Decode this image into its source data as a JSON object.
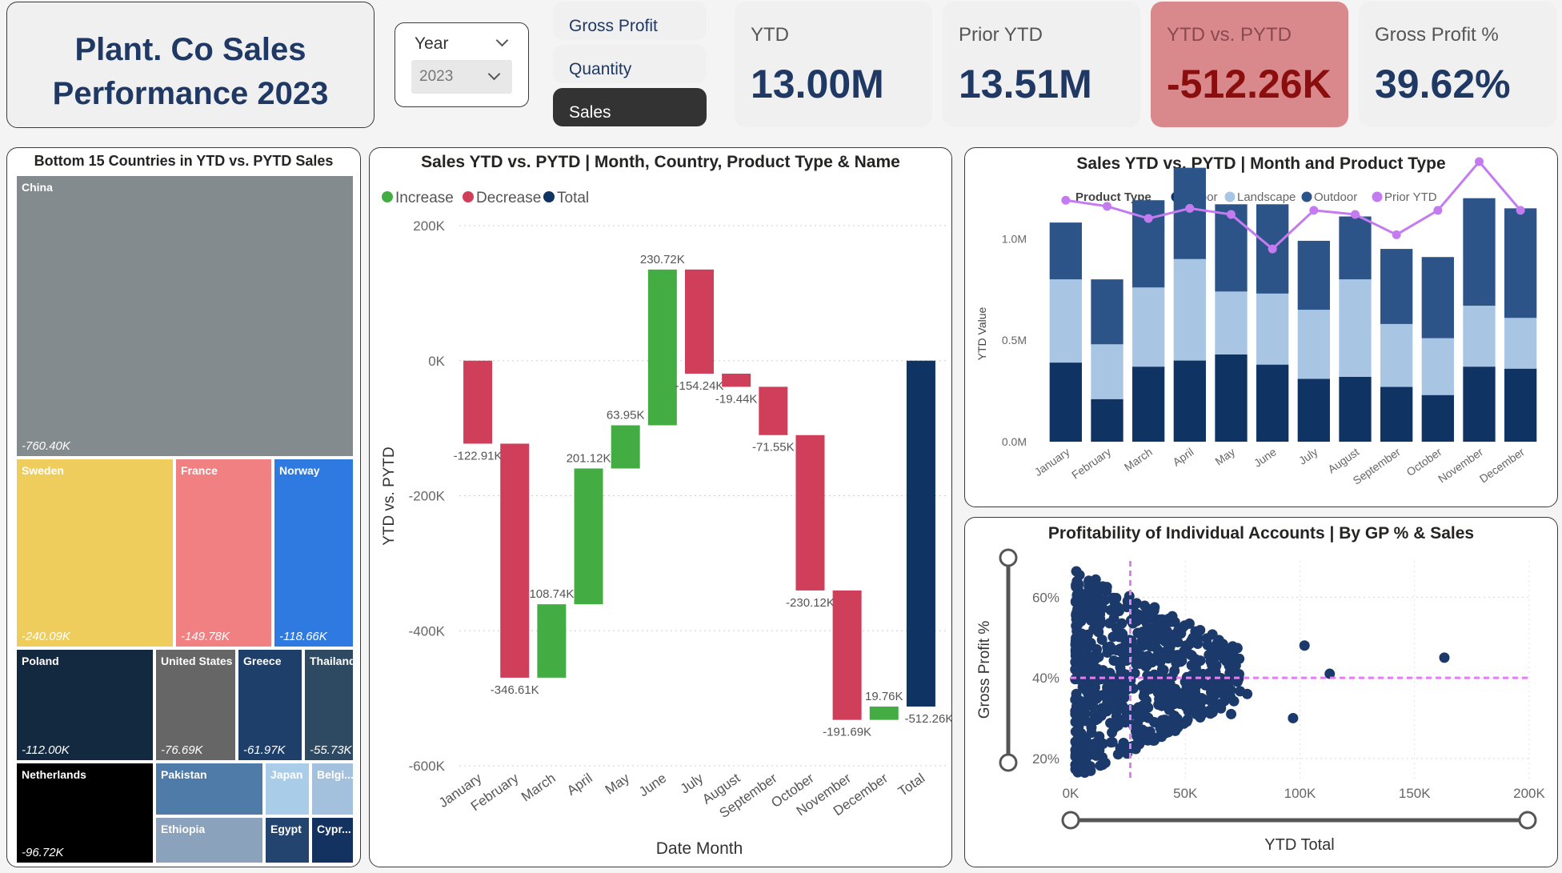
{
  "header": {
    "title_line1": "Plant. Co Sales",
    "title_line2": "Performance 2023"
  },
  "year_slicer": {
    "label": "Year",
    "value": "2023"
  },
  "metric_buttons": [
    {
      "label": "Gross Profit",
      "active": false
    },
    {
      "label": "Quantity",
      "active": false
    },
    {
      "label": "Sales",
      "active": true
    }
  ],
  "kpis": [
    {
      "label": "YTD",
      "value": "13.00M"
    },
    {
      "label": "Prior YTD",
      "value": "13.51M"
    },
    {
      "label": "YTD vs. PYTD",
      "value": "-512.26K"
    },
    {
      "label": "Gross Profit %",
      "value": "39.62%"
    }
  ],
  "treemap": {
    "title": "Bottom 15 Countries in YTD vs. PYTD Sales",
    "items": [
      {
        "name": "China",
        "value": "-760.40K",
        "color": "#848b8e"
      },
      {
        "name": "Sweden",
        "value": "-240.09K",
        "color": "#eecd5d"
      },
      {
        "name": "France",
        "value": "-149.78K",
        "color": "#f08082"
      },
      {
        "name": "Norway",
        "value": "-118.66K",
        "color": "#2f7ae0"
      },
      {
        "name": "Poland",
        "value": "-112.00K",
        "color": "#13293f"
      },
      {
        "name": "United States",
        "value": "-76.69K",
        "color": "#666666"
      },
      {
        "name": "Greece",
        "value": "-61.97K",
        "color": "#1d3f69"
      },
      {
        "name": "Thailand",
        "value": "-55.73K",
        "color": "#2e4a63"
      },
      {
        "name": "Netherlands",
        "value": "-96.72K",
        "color": "#000000"
      },
      {
        "name": "Pakistan",
        "value": "",
        "color": "#4f7ba8"
      },
      {
        "name": "Ethiopia",
        "value": "",
        "color": "#8aa2bb"
      },
      {
        "name": "Japan",
        "value": "",
        "color": "#a9cde8"
      },
      {
        "name": "Belgi...",
        "value": "",
        "color": "#a3c0dc"
      },
      {
        "name": "Egypt",
        "value": "",
        "color": "#244470"
      },
      {
        "name": "Cypr...",
        "value": "",
        "color": "#13325f"
      }
    ]
  },
  "chart_data": [
    {
      "type": "waterfall",
      "title": "Sales YTD vs. PYTD | Month, Country, Product Type & Name",
      "xlabel": "Date Month",
      "ylabel": "YTD vs. PYTD",
      "legend": [
        "Increase",
        "Decrease",
        "Total"
      ],
      "legend_colors": [
        "#43ad43",
        "#d03f59",
        "#0f3363"
      ],
      "ylim": [
        -600000,
        200000
      ],
      "yticks": [
        200000,
        0,
        -200000,
        -400000,
        -600000
      ],
      "ytick_labels": [
        "200K",
        "0K",
        "-200K",
        "-400K",
        "-600K"
      ],
      "categories": [
        "January",
        "February",
        "March",
        "April",
        "May",
        "June",
        "July",
        "August",
        "September",
        "October",
        "November",
        "December",
        "Total"
      ],
      "values": [
        -122910,
        -346610,
        108740,
        201120,
        63950,
        230720,
        -154240,
        -19440,
        -71550,
        -230120,
        -191690,
        19760,
        -512260
      ],
      "labels": [
        "-122.91K",
        "-346.61K",
        "108.74K",
        "201.12K",
        "63.95K",
        "230.72K",
        "-154.24K",
        "-19.44K",
        "-71.55K",
        "-230.12K",
        "-191.69K",
        "19.76K",
        "-512.26K"
      ]
    },
    {
      "type": "bar",
      "stacked": true,
      "title": "Sales YTD vs. PYTD | Month and Product Type",
      "ylabel": "YTD Value",
      "legend_title": "Product Type",
      "legend": [
        "Indoor",
        "Landscape",
        "Outdoor",
        "Prior YTD"
      ],
      "ylim": [
        0,
        1250000
      ],
      "yticks": [
        0,
        500000,
        1000000
      ],
      "ytick_labels": [
        "0.0M",
        "0.5M",
        "1.0M"
      ],
      "categories": [
        "January",
        "February",
        "March",
        "April",
        "May",
        "June",
        "July",
        "August",
        "September",
        "October",
        "November",
        "December"
      ],
      "series": [
        {
          "name": "Indoor",
          "color": "#0f3363",
          "values": [
            390000,
            210000,
            370000,
            400000,
            430000,
            380000,
            310000,
            320000,
            270000,
            230000,
            370000,
            360000
          ]
        },
        {
          "name": "Landscape",
          "color": "#a8c6e3",
          "values": [
            410000,
            270000,
            390000,
            500000,
            310000,
            350000,
            340000,
            480000,
            310000,
            280000,
            300000,
            250000
          ]
        },
        {
          "name": "Outdoor",
          "color": "#2d5489",
          "values": [
            280000,
            320000,
            430000,
            450000,
            430000,
            440000,
            340000,
            310000,
            370000,
            400000,
            530000,
            540000
          ]
        }
      ],
      "line": {
        "name": "Prior YTD",
        "color": "#c57bf0",
        "values": [
          1190000,
          1160000,
          1100000,
          1150000,
          1120000,
          950000,
          1140000,
          1120000,
          1020000,
          1140000,
          1380000,
          1140000
        ]
      }
    },
    {
      "type": "scatter",
      "title": "Profitability of Individual Accounts | By GP % & Sales",
      "xlabel": "YTD Total",
      "ylabel": "Gross Profit %",
      "xlim": [
        0,
        200000
      ],
      "ylim": [
        0.15,
        0.69
      ],
      "xticks": [
        0,
        50000,
        100000,
        150000,
        200000
      ],
      "xtick_labels": [
        "0K",
        "50K",
        "100K",
        "150K",
        "200K"
      ],
      "yticks": [
        0.2,
        0.4,
        0.6
      ],
      "ytick_labels": [
        "20%",
        "40%",
        "60%"
      ],
      "ref_x": 26000,
      "ref_y": 0.4,
      "point_color": "#1b3a6b",
      "outliers": [
        [
          48000,
          0.44
        ],
        [
          63000,
          0.38
        ],
        [
          70000,
          0.31
        ],
        [
          77000,
          0.36
        ],
        [
          97000,
          0.3
        ],
        [
          102000,
          0.48
        ],
        [
          113000,
          0.41
        ],
        [
          163000,
          0.45
        ]
      ]
    }
  ]
}
